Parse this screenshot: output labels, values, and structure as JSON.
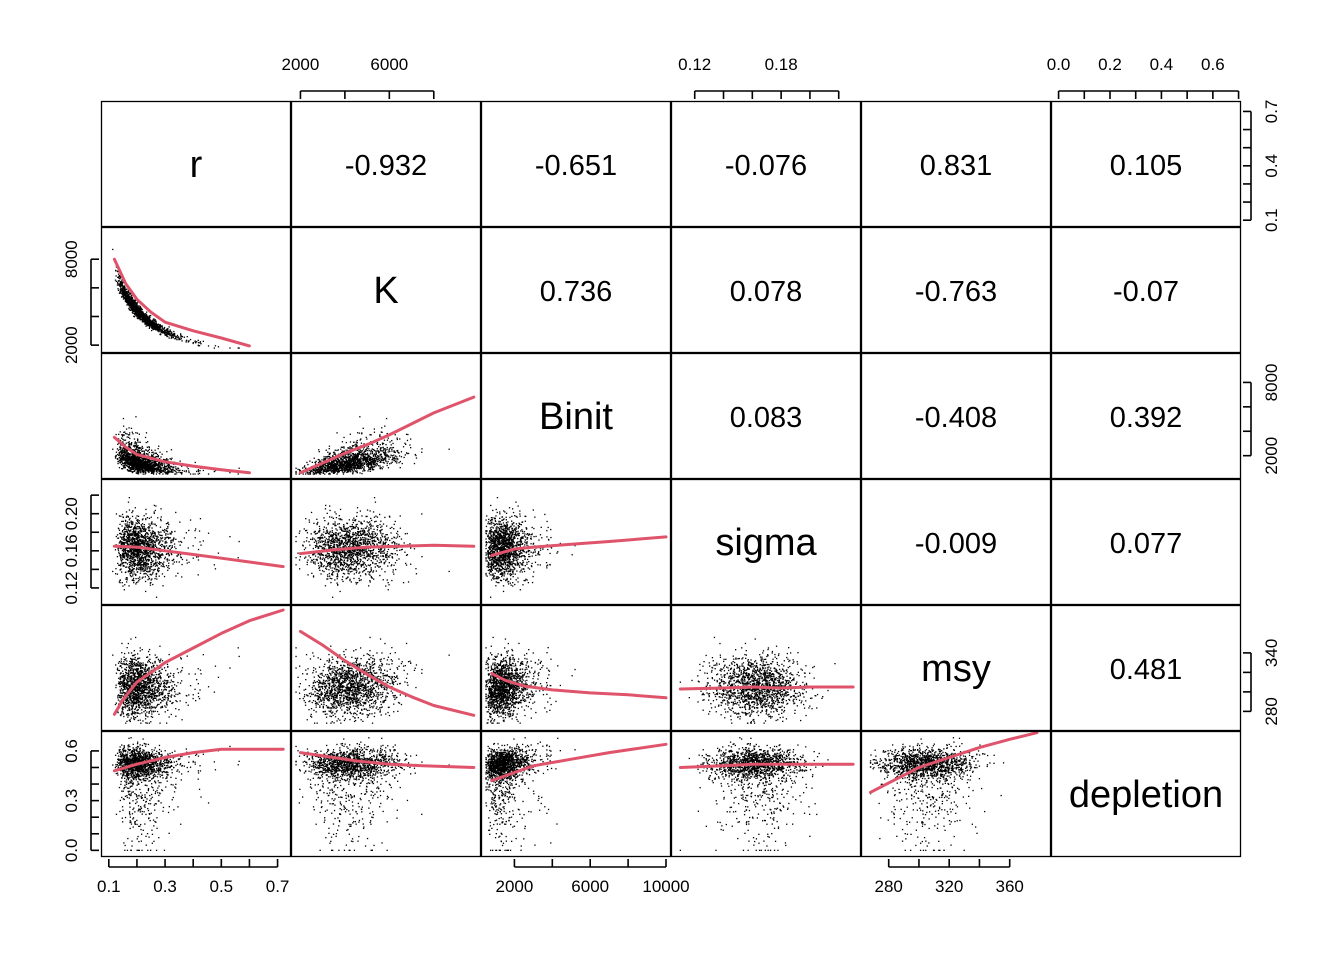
{
  "chart_data": {
    "type": "scatter",
    "variables": [
      "r",
      "K",
      "Binit",
      "sigma",
      "msy",
      "depletion"
    ],
    "ranges": {
      "r": [
        0.09,
        0.73
      ],
      "K": [
        1800,
        9900
      ],
      "Binit": [
        500,
        10000
      ],
      "sigma": [
        0.107,
        0.232
      ],
      "msy": [
        265,
        384
      ],
      "depletion": [
        -0.01,
        0.69
      ]
    },
    "correlations": [
      {
        "row": 0,
        "col": 1,
        "label": "-0.932"
      },
      {
        "row": 0,
        "col": 2,
        "label": "-0.651"
      },
      {
        "row": 0,
        "col": 3,
        "label": "-0.076"
      },
      {
        "row": 0,
        "col": 4,
        "label": "0.831"
      },
      {
        "row": 0,
        "col": 5,
        "label": "0.105"
      },
      {
        "row": 1,
        "col": 2,
        "label": "0.736"
      },
      {
        "row": 1,
        "col": 3,
        "label": "0.078"
      },
      {
        "row": 1,
        "col": 4,
        "label": "-0.763"
      },
      {
        "row": 1,
        "col": 5,
        "label": "-0.07"
      },
      {
        "row": 2,
        "col": 3,
        "label": "0.083"
      },
      {
        "row": 2,
        "col": 4,
        "label": "-0.408"
      },
      {
        "row": 2,
        "col": 5,
        "label": "0.392"
      },
      {
        "row": 3,
        "col": 4,
        "label": "-0.009"
      },
      {
        "row": 3,
        "col": 5,
        "label": "0.077"
      },
      {
        "row": 4,
        "col": 5,
        "label": "0.481"
      }
    ],
    "axes": {
      "top": [
        {
          "col": 1,
          "ticks": [
            2000,
            4000,
            6000,
            8000
          ],
          "labels": [
            {
              "value": 2000,
              "text": "2000"
            },
            {
              "value": 6000,
              "text": "6000"
            }
          ]
        },
        {
          "col": 3,
          "ticks": [
            0.12,
            0.14,
            0.16,
            0.18,
            0.2,
            0.22
          ],
          "labels": [
            {
              "value": 0.12,
              "text": "0.12"
            },
            {
              "value": 0.18,
              "text": "0.18"
            }
          ]
        },
        {
          "col": 5,
          "ticks": [
            0.0,
            0.1,
            0.2,
            0.3,
            0.4,
            0.5,
            0.6,
            0.7
          ],
          "labels": [
            {
              "value": 0.0,
              "text": "0.0"
            },
            {
              "value": 0.2,
              "text": "0.2"
            },
            {
              "value": 0.4,
              "text": "0.4"
            },
            {
              "value": 0.6,
              "text": "0.6"
            }
          ]
        }
      ],
      "bottom": [
        {
          "col": 0,
          "ticks": [
            0.1,
            0.2,
            0.3,
            0.4,
            0.5,
            0.6,
            0.7
          ],
          "labels": [
            {
              "value": 0.1,
              "text": "0.1"
            },
            {
              "value": 0.3,
              "text": "0.3"
            },
            {
              "value": 0.5,
              "text": "0.5"
            },
            {
              "value": 0.7,
              "text": "0.7"
            }
          ]
        },
        {
          "col": 2,
          "ticks": [
            2000,
            4000,
            6000,
            8000,
            10000
          ],
          "labels": [
            {
              "value": 2000,
              "text": "2000"
            },
            {
              "value": 6000,
              "text": "6000"
            },
            {
              "value": 10000,
              "text": "10000"
            }
          ]
        },
        {
          "col": 4,
          "ticks": [
            280,
            300,
            320,
            340,
            360
          ],
          "labels": [
            {
              "value": 280,
              "text": "280"
            },
            {
              "value": 320,
              "text": "320"
            },
            {
              "value": 360,
              "text": "360"
            }
          ]
        }
      ],
      "left": [
        {
          "row": 1,
          "ticks": [
            2000,
            4000,
            6000,
            8000
          ],
          "labels": [
            {
              "value": 2000,
              "text": "2000"
            },
            {
              "value": 8000,
              "text": "8000"
            }
          ]
        },
        {
          "row": 3,
          "ticks": [
            0.12,
            0.14,
            0.16,
            0.18,
            0.2,
            0.22
          ],
          "labels": [
            {
              "value": 0.12,
              "text": "0.12"
            },
            {
              "value": 0.16,
              "text": "0.16"
            },
            {
              "value": 0.2,
              "text": "0.20"
            }
          ]
        },
        {
          "row": 5,
          "ticks": [
            0.0,
            0.1,
            0.2,
            0.3,
            0.4,
            0.5,
            0.6
          ],
          "labels": [
            {
              "value": 0.0,
              "text": "0.0"
            },
            {
              "value": 0.3,
              "text": "0.3"
            },
            {
              "value": 0.6,
              "text": "0.6"
            }
          ]
        }
      ],
      "right": [
        {
          "row": 0,
          "ticks": [
            0.1,
            0.2,
            0.3,
            0.4,
            0.5,
            0.6,
            0.7
          ],
          "labels": [
            {
              "value": 0.1,
              "text": "0.1"
            },
            {
              "value": 0.4,
              "text": "0.4"
            },
            {
              "value": 0.7,
              "text": "0.7"
            }
          ]
        },
        {
          "row": 2,
          "ticks": [
            2000,
            4000,
            6000,
            8000
          ],
          "labels": [
            {
              "value": 2000,
              "text": "2000"
            },
            {
              "value": 8000,
              "text": "8000"
            }
          ]
        },
        {
          "row": 4,
          "ticks": [
            280,
            300,
            320,
            340
          ],
          "labels": [
            {
              "value": 280,
              "text": "280"
            },
            {
              "value": 340,
              "text": "340"
            }
          ]
        }
      ]
    },
    "smoothers": {
      "1_0": [
        [
          0.12,
          8000
        ],
        [
          0.16,
          6300
        ],
        [
          0.2,
          5200
        ],
        [
          0.25,
          4300
        ],
        [
          0.3,
          3600
        ],
        [
          0.4,
          3000
        ],
        [
          0.5,
          2500
        ],
        [
          0.6,
          1950
        ]
      ],
      "2_0": [
        [
          0.12,
          3500
        ],
        [
          0.16,
          2700
        ],
        [
          0.2,
          2100
        ],
        [
          0.3,
          1500
        ],
        [
          0.4,
          1150
        ],
        [
          0.5,
          850
        ],
        [
          0.6,
          600
        ]
      ],
      "2_1": [
        [
          2000,
          600
        ],
        [
          3000,
          1400
        ],
        [
          4000,
          2200
        ],
        [
          5000,
          2900
        ],
        [
          6000,
          3700
        ],
        [
          7000,
          4600
        ],
        [
          8000,
          5500
        ],
        [
          9800,
          6800
        ]
      ],
      "3_0": [
        [
          0.12,
          0.165
        ],
        [
          0.2,
          0.164
        ],
        [
          0.3,
          0.16
        ],
        [
          0.4,
          0.156
        ],
        [
          0.5,
          0.152
        ],
        [
          0.6,
          0.148
        ],
        [
          0.72,
          0.143
        ]
      ],
      "3_1": [
        [
          2000,
          0.157
        ],
        [
          3500,
          0.161
        ],
        [
          5000,
          0.164
        ],
        [
          6500,
          0.165
        ],
        [
          8000,
          0.166
        ],
        [
          9800,
          0.165
        ]
      ],
      "3_2": [
        [
          800,
          0.155
        ],
        [
          2000,
          0.162
        ],
        [
          3000,
          0.164
        ],
        [
          5000,
          0.167
        ],
        [
          7000,
          0.17
        ],
        [
          10000,
          0.175
        ]
      ],
      "4_0": [
        [
          0.12,
          277
        ],
        [
          0.15,
          292
        ],
        [
          0.2,
          310
        ],
        [
          0.3,
          330
        ],
        [
          0.4,
          345
        ],
        [
          0.5,
          360
        ],
        [
          0.6,
          373
        ],
        [
          0.72,
          384
        ]
      ],
      "4_1": [
        [
          2000,
          362
        ],
        [
          3000,
          348
        ],
        [
          4000,
          332
        ],
        [
          5000,
          318
        ],
        [
          6000,
          305
        ],
        [
          7000,
          295
        ],
        [
          8000,
          286
        ],
        [
          9800,
          276
        ]
      ],
      "4_2": [
        [
          800,
          319
        ],
        [
          1500,
          312
        ],
        [
          2500,
          306
        ],
        [
          4000,
          302
        ],
        [
          6000,
          299
        ],
        [
          8000,
          297
        ],
        [
          10000,
          294
        ]
      ],
      "4_3": [
        [
          0.11,
          303
        ],
        [
          0.14,
          304
        ],
        [
          0.16,
          305
        ],
        [
          0.18,
          304
        ],
        [
          0.2,
          305
        ],
        [
          0.23,
          305
        ]
      ],
      "5_0": [
        [
          0.12,
          0.48
        ],
        [
          0.2,
          0.52
        ],
        [
          0.3,
          0.56
        ],
        [
          0.4,
          0.59
        ],
        [
          0.5,
          0.61
        ],
        [
          0.6,
          0.61
        ],
        [
          0.72,
          0.61
        ]
      ],
      "5_1": [
        [
          2000,
          0.59
        ],
        [
          3000,
          0.57
        ],
        [
          4500,
          0.54
        ],
        [
          6000,
          0.52
        ],
        [
          7500,
          0.51
        ],
        [
          9800,
          0.5
        ]
      ],
      "5_2": [
        [
          800,
          0.42
        ],
        [
          2000,
          0.47
        ],
        [
          3000,
          0.51
        ],
        [
          5000,
          0.55
        ],
        [
          7000,
          0.59
        ],
        [
          10000,
          0.64
        ]
      ],
      "5_3": [
        [
          0.11,
          0.5
        ],
        [
          0.14,
          0.51
        ],
        [
          0.16,
          0.52
        ],
        [
          0.18,
          0.52
        ],
        [
          0.2,
          0.52
        ],
        [
          0.23,
          0.52
        ]
      ],
      "5_4": [
        [
          268,
          0.35
        ],
        [
          285,
          0.43
        ],
        [
          300,
          0.5
        ],
        [
          320,
          0.56
        ],
        [
          340,
          0.62
        ],
        [
          360,
          0.67
        ],
        [
          378,
          0.71
        ]
      ]
    },
    "point_color": "#000000",
    "smoother_color": "#df536b",
    "sample_count": 1500
  }
}
